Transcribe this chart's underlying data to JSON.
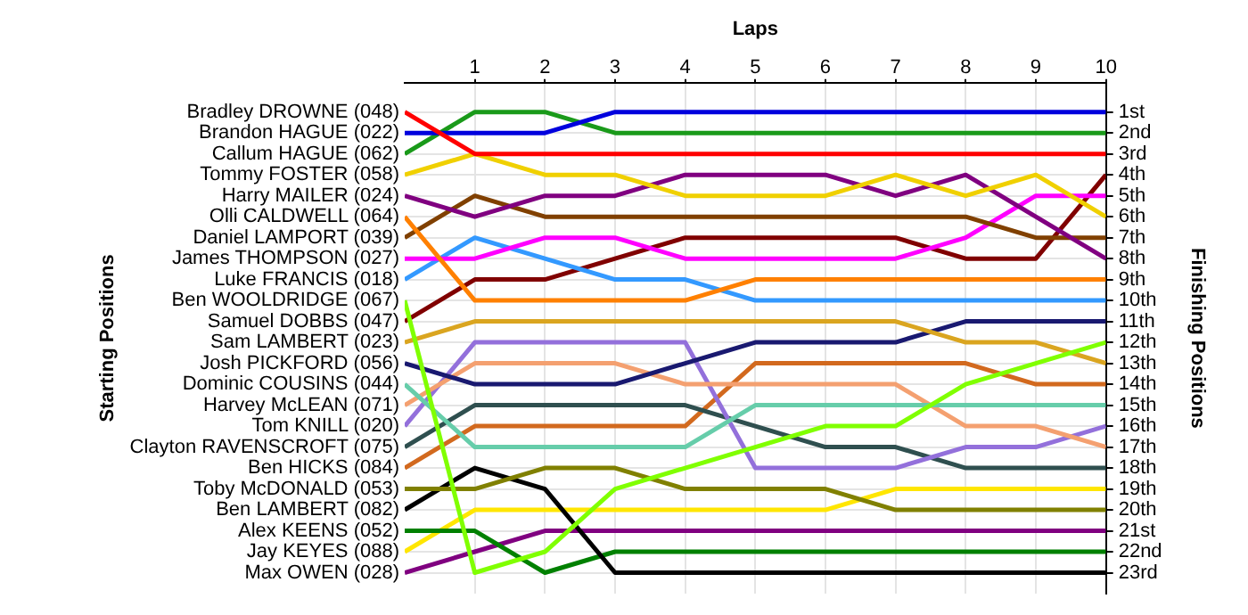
{
  "chart_data": {
    "type": "line",
    "xlabel": "Laps",
    "annotations": [
      "Starting Positions"
    ],
    "y2label": "Finishing Positions",
    "grid": true,
    "legend": "left",
    "x": [
      0,
      1,
      2,
      3,
      4,
      5,
      6,
      7,
      8,
      9,
      10
    ],
    "xlim": [
      0,
      10
    ],
    "xticks": [
      1,
      2,
      3,
      4,
      5,
      6,
      7,
      8,
      9,
      10
    ],
    "y2lim": [
      24,
      -0.4
    ],
    "y2ticks": [
      {
        "value": 1,
        "label": "1st"
      },
      {
        "value": 2,
        "label": "2nd"
      },
      {
        "value": 3,
        "label": "3rd"
      },
      {
        "value": 4,
        "label": "4th"
      },
      {
        "value": 5,
        "label": "5th"
      },
      {
        "value": 6,
        "label": "6th"
      },
      {
        "value": 7,
        "label": "7th"
      },
      {
        "value": 8,
        "label": "8th"
      },
      {
        "value": 9,
        "label": "9th"
      },
      {
        "value": 10,
        "label": "10th"
      },
      {
        "value": 11,
        "label": "11th"
      },
      {
        "value": 12,
        "label": "12th"
      },
      {
        "value": 13,
        "label": "13th"
      },
      {
        "value": 14,
        "label": "14th"
      },
      {
        "value": 15,
        "label": "15th"
      },
      {
        "value": 16,
        "label": "16th"
      },
      {
        "value": 17,
        "label": "17th"
      },
      {
        "value": 18,
        "label": "18th"
      },
      {
        "value": 19,
        "label": "19th"
      },
      {
        "value": 20,
        "label": "20th"
      },
      {
        "value": 21,
        "label": "21st"
      },
      {
        "value": 22,
        "label": "22nd"
      },
      {
        "value": 23,
        "label": "23rd"
      }
    ],
    "series": [
      {
        "name": "Bradley DROWNE (048)",
        "axis": "y2",
        "color": "#ff0000",
        "values": [
          1,
          3,
          3,
          3,
          3,
          3,
          3,
          3,
          3,
          3,
          3
        ]
      },
      {
        "name": "Brandon HAGUE (022)",
        "axis": "y2",
        "color": "#0000dd",
        "values": [
          2,
          2,
          2,
          1,
          1,
          1,
          1,
          1,
          1,
          1,
          1
        ]
      },
      {
        "name": "Callum HAGUE (062)",
        "axis": "y2",
        "color": "#1a9a1a",
        "values": [
          3,
          1,
          1,
          2,
          2,
          2,
          2,
          2,
          2,
          2,
          2
        ]
      },
      {
        "name": "Tommy FOSTER (058)",
        "axis": "y2",
        "color": "#f0d000",
        "values": [
          4,
          3,
          4,
          4,
          5,
          5,
          5,
          4,
          5,
          4,
          6
        ]
      },
      {
        "name": "Harry MAILER (024)",
        "axis": "y2",
        "color": "#800080",
        "values": [
          5,
          6,
          5,
          5,
          4,
          4,
          4,
          5,
          4,
          6,
          8
        ]
      },
      {
        "name": "Olli CALDWELL (064)",
        "axis": "y2",
        "color": "#ff8000",
        "values": [
          6,
          10,
          10,
          10,
          10,
          9,
          9,
          9,
          9,
          9,
          9
        ]
      },
      {
        "name": "Daniel LAMPORT (039)",
        "axis": "y2",
        "color": "#804000",
        "values": [
          7,
          5,
          6,
          6,
          6,
          6,
          6,
          6,
          6,
          7,
          7
        ]
      },
      {
        "name": "James THOMPSON (027)",
        "axis": "y2",
        "color": "#ff00ff",
        "values": [
          8,
          8,
          7,
          7,
          8,
          8,
          8,
          8,
          7,
          5,
          5
        ]
      },
      {
        "name": "Luke FRANCIS (018)",
        "axis": "y2",
        "color": "#3399ff",
        "values": [
          9,
          7,
          8,
          9,
          9,
          10,
          10,
          10,
          10,
          10,
          10
        ]
      },
      {
        "name": "Ben WOOLDRIDGE (067)",
        "axis": "y2",
        "color": "#80ff00",
        "values": [
          10,
          23,
          22,
          19,
          18,
          17,
          16,
          16,
          14,
          13,
          12
        ]
      },
      {
        "name": "Samuel DOBBS (047)",
        "axis": "y2",
        "color": "#800000",
        "values": [
          11,
          9,
          9,
          8,
          7,
          7,
          7,
          7,
          8,
          8,
          4
        ]
      },
      {
        "name": "Sam LAMBERT (023)",
        "axis": "y2",
        "color": "#daa520",
        "values": [
          12,
          11,
          11,
          11,
          11,
          11,
          11,
          11,
          12,
          12,
          13
        ]
      },
      {
        "name": "Josh PICKFORD (056)",
        "axis": "y2",
        "color": "#191970",
        "values": [
          13,
          14,
          14,
          14,
          13,
          12,
          12,
          12,
          11,
          11,
          11
        ]
      },
      {
        "name": "Dominic COUSINS (044)",
        "axis": "y2",
        "color": "#66cdaa",
        "values": [
          14,
          17,
          17,
          17,
          17,
          15,
          15,
          15,
          15,
          15,
          15
        ]
      },
      {
        "name": "Harvey McLEAN (071)",
        "axis": "y2",
        "color": "#f4a070",
        "values": [
          15,
          13,
          13,
          13,
          14,
          14,
          14,
          14,
          16,
          16,
          17
        ]
      },
      {
        "name": "Tom KNILL (020)",
        "axis": "y2",
        "color": "#9370db",
        "values": [
          16,
          12,
          12,
          12,
          12,
          18,
          18,
          18,
          17,
          17,
          16
        ]
      },
      {
        "name": "Clayton RAVENSCROFT (075)",
        "axis": "y2",
        "color": "#2f4f4f",
        "values": [
          17,
          15,
          15,
          15,
          15,
          16,
          17,
          17,
          18,
          18,
          18
        ]
      },
      {
        "name": "Ben HICKS (084)",
        "axis": "y2",
        "color": "#d2691e",
        "values": [
          18,
          16,
          16,
          16,
          16,
          13,
          13,
          13,
          13,
          14,
          14
        ]
      },
      {
        "name": "Toby McDONALD (053)",
        "axis": "y2",
        "color": "#808000",
        "values": [
          19,
          19,
          18,
          18,
          19,
          19,
          19,
          20,
          20,
          20,
          20
        ]
      },
      {
        "name": "Ben LAMBERT (082)",
        "axis": "y2",
        "color": "#000000",
        "values": [
          20,
          18,
          19,
          23,
          23,
          23,
          23,
          23,
          23,
          23,
          23
        ]
      },
      {
        "name": "Alex KEENS (052)",
        "axis": "y2",
        "color": "#008000",
        "values": [
          21,
          21,
          23,
          22,
          22,
          22,
          22,
          22,
          22,
          22,
          22
        ]
      },
      {
        "name": "Jay KEYES (088)",
        "axis": "y2",
        "color": "#ffe600",
        "values": [
          22,
          20,
          20,
          20,
          20,
          20,
          20,
          19,
          19,
          19,
          19
        ]
      },
      {
        "name": "Max OWEN (028)",
        "axis": "y2",
        "color": "#800080",
        "values": [
          23,
          22,
          21,
          21,
          21,
          21,
          21,
          21,
          21,
          21,
          21
        ]
      }
    ]
  }
}
